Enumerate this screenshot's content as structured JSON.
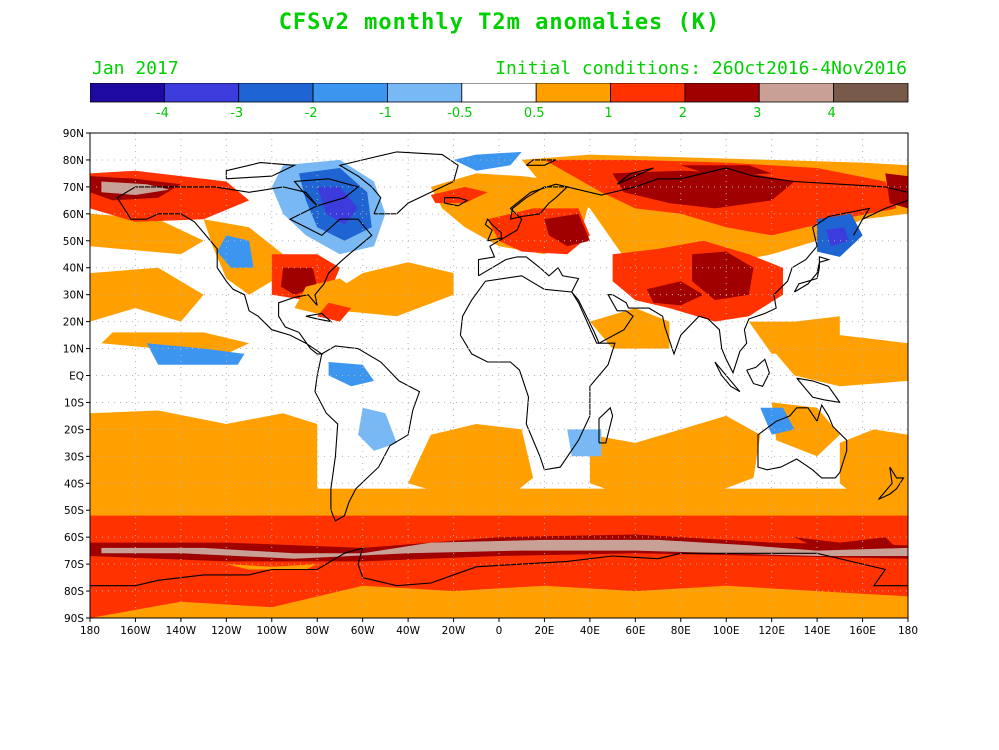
{
  "title": "CFSv2 monthly T2m anomalies (K)",
  "subtitle_left": "Jan 2017",
  "subtitle_right": "Initial conditions: 26Oct2016-4Nov2016",
  "colors": {
    "title_green": "#00d000",
    "land_outline": "#000000",
    "grid": "#b4b4b4"
  },
  "legend": {
    "bins": [
      {
        "color": "#1e0aa0"
      },
      {
        "color": "#3c3cdc"
      },
      {
        "color": "#1e64d2"
      },
      {
        "color": "#3c96f0"
      },
      {
        "color": "#78b9f5"
      },
      {
        "color": "#ffffff"
      },
      {
        "color": "#ffa000"
      },
      {
        "color": "#ff3200"
      },
      {
        "color": "#a00000"
      },
      {
        "color": "#c8a096"
      },
      {
        "color": "#785a4b"
      }
    ],
    "labels": [
      "-4",
      "-3",
      "-2",
      "-1",
      "-0.5",
      "0.5",
      "1",
      "2",
      "3",
      "4"
    ]
  },
  "axes": {
    "lat_labels": [
      "90N",
      "80N",
      "70N",
      "60N",
      "50N",
      "40N",
      "30N",
      "20N",
      "10N",
      "EQ",
      "10S",
      "20S",
      "30S",
      "40S",
      "50S",
      "60S",
      "70S",
      "80S",
      "90S"
    ],
    "lon_labels": [
      "180",
      "160W",
      "140W",
      "120W",
      "100W",
      "80W",
      "60W",
      "40W",
      "20W",
      "0",
      "20E",
      "40E",
      "60E",
      "80E",
      "100E",
      "120E",
      "140E",
      "160E",
      "180"
    ]
  },
  "anomaly_regions": [
    {
      "level": "2",
      "description": "Southern Ocean warm band"
    },
    {
      "level": "3",
      "description": "Southern Ocean strong warm"
    },
    {
      "level": "4",
      "description": "Southern Ocean strongest warm"
    },
    {
      "level": "1",
      "description": "Antarctica warm"
    },
    {
      "level": "1",
      "description": "southern subtropical oceans"
    },
    {
      "level": "2",
      "description": "Siberia warm"
    },
    {
      "level": "3",
      "description": "central Siberia strong warm"
    },
    {
      "level": "2",
      "description": "eastern US warm"
    },
    {
      "level": "-2",
      "description": "Labrador / Hudson Bay cold"
    },
    {
      "level": "-3",
      "description": "Labrador core cold"
    },
    {
      "level": "-2",
      "description": "Sea of Okhotsk cold"
    },
    {
      "level": "3",
      "description": "Alaska warm"
    },
    {
      "level": "2",
      "description": "Europe warm"
    },
    {
      "level": "3",
      "description": "central Asia warm"
    },
    {
      "level": "1",
      "description": "north Pacific warm"
    },
    {
      "level": "-1",
      "description": "western US cold"
    },
    {
      "level": "-1",
      "description": "equatorial Pacific cool"
    }
  ]
}
